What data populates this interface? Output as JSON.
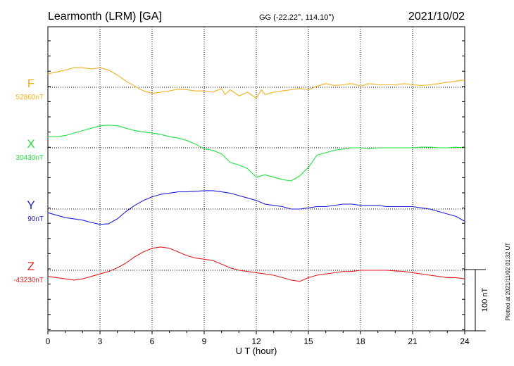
{
  "header": {
    "station": "Learmonth (LRM)  [GA]",
    "coords": "GG (-22.22°, 114.10°)",
    "date": "2021/10/02"
  },
  "footer_note": "Plotted at 2021/11/02 01:32 UT",
  "chart_data": {
    "type": "line",
    "title": "Learmonth (LRM)  [GA]",
    "xlabel": "U T (hour)",
    "xlim": [
      0,
      24
    ],
    "x_ticks": [
      "0",
      "3",
      "6",
      "9",
      "12",
      "15",
      "18",
      "21",
      "24"
    ],
    "grid": true,
    "scale_bar": {
      "label": "100 nT",
      "value_nT": 100
    },
    "series": [
      {
        "name": "F",
        "baseline_label": "52860nT",
        "color": "#f0b020",
        "x": [
          0,
          0.5,
          1,
          1.5,
          2,
          2.5,
          3,
          3.5,
          4,
          4.5,
          5,
          5.5,
          6,
          6.5,
          7,
          7.5,
          8,
          8.5,
          9,
          9.5,
          10,
          10.2,
          10.5,
          11,
          11.5,
          12,
          12.3,
          12.5,
          13,
          13.5,
          14,
          14.5,
          15,
          15.5,
          16,
          16.5,
          17,
          17.5,
          18,
          18.5,
          19,
          19.5,
          20,
          20.5,
          21,
          21.5,
          22,
          22.5,
          23,
          23.5,
          24
        ],
        "delta_nT": [
          22,
          25,
          28,
          32,
          32,
          30,
          32,
          28,
          20,
          10,
          2,
          -6,
          -10,
          -8,
          -6,
          -3,
          -4,
          -6,
          -6,
          -8,
          -2,
          -12,
          -4,
          -14,
          -8,
          -18,
          -4,
          -12,
          -8,
          -6,
          -4,
          -2,
          -4,
          2,
          6,
          3,
          4,
          6,
          2,
          6,
          4,
          4,
          4,
          6,
          4,
          3,
          4,
          6,
          8,
          10,
          12
        ]
      },
      {
        "name": "X",
        "baseline_label": "30430nT",
        "color": "#20e040",
        "x": [
          0,
          0.5,
          1,
          1.5,
          2,
          2.5,
          3,
          3.5,
          4,
          4.5,
          5,
          5.5,
          6,
          6.5,
          7,
          7.5,
          8,
          8.5,
          9,
          9.5,
          10,
          10.5,
          11,
          11.5,
          12,
          12.5,
          13,
          13.5,
          14,
          14.5,
          15,
          15.5,
          16,
          16.5,
          17,
          17.5,
          18,
          18.5,
          19,
          19.5,
          20,
          20.5,
          21,
          21.5,
          22,
          22.5,
          23,
          23.5,
          24
        ],
        "delta_nT": [
          18,
          18,
          20,
          24,
          28,
          32,
          36,
          37,
          36,
          32,
          28,
          26,
          24,
          22,
          18,
          16,
          12,
          6,
          -2,
          -4,
          -10,
          -24,
          -28,
          -34,
          -48,
          -44,
          -48,
          -52,
          -54,
          -46,
          -32,
          -12,
          -8,
          -4,
          -2,
          0,
          0,
          -1,
          0,
          0,
          0,
          0,
          0,
          1,
          1,
          0,
          0,
          1,
          0
        ]
      },
      {
        "name": "Y",
        "baseline_label": "90nT",
        "color": "#2020d8",
        "x": [
          0,
          0.5,
          1,
          1.5,
          2,
          2.5,
          3,
          3.5,
          4,
          4.5,
          5,
          5.5,
          6,
          6.5,
          7,
          7.5,
          8,
          8.5,
          9,
          9.5,
          10,
          10.5,
          11,
          11.5,
          12,
          12.5,
          13,
          13.5,
          14,
          14.5,
          15,
          15.5,
          16,
          16.5,
          17,
          17.5,
          18,
          18.5,
          19,
          19.5,
          20,
          20.5,
          21,
          21.5,
          22,
          22.5,
          23,
          23.5,
          24
        ],
        "delta_nT": [
          -6,
          -10,
          -14,
          -16,
          -18,
          -22,
          -25,
          -24,
          -16,
          -4,
          6,
          14,
          20,
          24,
          26,
          28,
          28,
          29,
          30,
          30,
          28,
          26,
          22,
          18,
          14,
          8,
          6,
          4,
          0,
          0,
          2,
          4,
          4,
          6,
          8,
          8,
          6,
          6,
          6,
          4,
          4,
          4,
          4,
          2,
          0,
          -4,
          -8,
          -12,
          -20
        ]
      },
      {
        "name": "Z",
        "baseline_label": "-43230nT",
        "color": "#e02020",
        "x": [
          0,
          0.5,
          1,
          1.5,
          2,
          2.5,
          3,
          3.5,
          4,
          4.5,
          5,
          5.5,
          6,
          6.5,
          7,
          7.5,
          8,
          8.5,
          9,
          9.5,
          10,
          10.5,
          11,
          11.5,
          12,
          12.5,
          13,
          13.5,
          14,
          14.5,
          15,
          15.5,
          16,
          16.5,
          17,
          17.5,
          18,
          18.5,
          19,
          19.5,
          20,
          20.5,
          21,
          21.5,
          22,
          22.5,
          23,
          23.5,
          24
        ],
        "delta_nT": [
          -10,
          -12,
          -14,
          -16,
          -14,
          -10,
          -6,
          -2,
          4,
          12,
          22,
          30,
          36,
          38,
          36,
          30,
          24,
          20,
          18,
          16,
          10,
          4,
          0,
          -2,
          -4,
          -6,
          -8,
          -12,
          -16,
          -18,
          -12,
          -8,
          -6,
          -4,
          -2,
          -2,
          0,
          0,
          0,
          0,
          -1,
          -2,
          -4,
          -6,
          -8,
          -10,
          -12,
          -12,
          -14
        ]
      }
    ]
  }
}
